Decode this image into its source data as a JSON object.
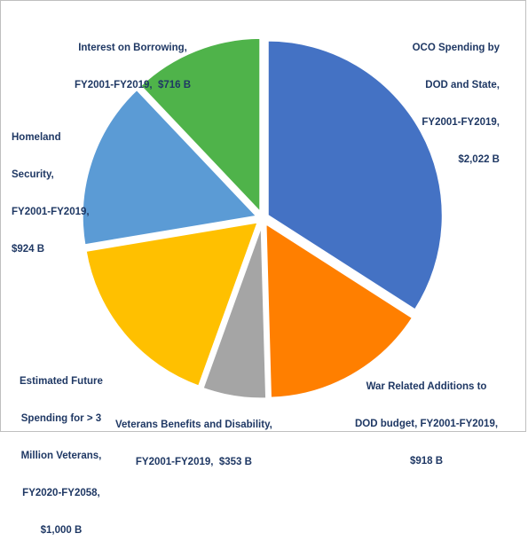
{
  "chart_data": {
    "type": "pie",
    "start_angle_deg": 0,
    "slices": [
      {
        "label_lines": [
          "OCO Spending by",
          "DOD and State,",
          "FY2001-FY2019,",
          "$2,022 B"
        ],
        "value": 2022,
        "color": "#4472c4"
      },
      {
        "label_lines": [
          "War Related Additions to",
          "DOD budget, FY2001-FY2019,",
          "$918 B"
        ],
        "value": 918,
        "color": "#ff7f00"
      },
      {
        "label_lines": [
          "Veterans Benefits and Disability,",
          "FY2001-FY2019,  $353 B"
        ],
        "value": 353,
        "color": "#a5a5a5"
      },
      {
        "label_lines": [
          "Estimated Future",
          "Spending for > 3",
          "Million Veterans,",
          "FY2020-FY2058,",
          "$1,000 B"
        ],
        "value": 1000,
        "color": "#ffc000"
      },
      {
        "label_lines": [
          "Homeland",
          "Security,",
          "FY2001-FY2019,",
          "$924 B"
        ],
        "value": 924,
        "color": "#5b9bd5"
      },
      {
        "label_lines": [
          "Interest on Borrowing,",
          "FY2001-FY2019,  $716 B"
        ],
        "value": 716,
        "color": "#4fb34a"
      }
    ]
  }
}
